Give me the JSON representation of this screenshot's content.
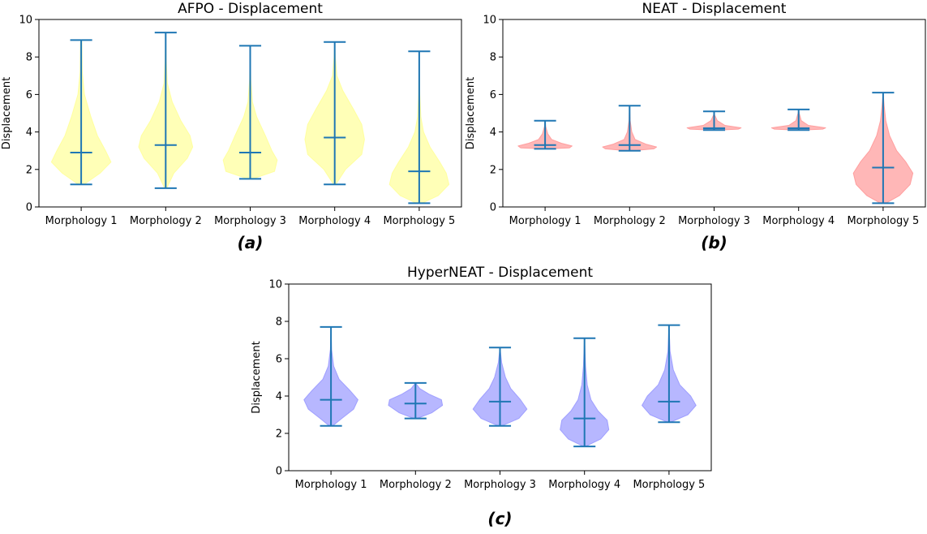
{
  "chart_data": [
    {
      "id": "afpo",
      "type": "violin",
      "title": "AFPO - Displacement",
      "xlabel": "",
      "ylabel": "Displacement",
      "ylim": [
        0,
        10
      ],
      "yticks": [
        0,
        2,
        4,
        6,
        8,
        10
      ],
      "categories": [
        "Morphology 1",
        "Morphology 2",
        "Morphology 3",
        "Morphology 4",
        "Morphology 5"
      ],
      "panel_label": "(a)",
      "fill_color": "#ffff99",
      "edge_color": "#1f77b4",
      "series": [
        {
          "min": 1.2,
          "max": 8.9,
          "median": 2.9,
          "profile": [
            [
              1.2,
              0.05
            ],
            [
              1.8,
              0.35
            ],
            [
              2.4,
              0.55
            ],
            [
              3.0,
              0.45
            ],
            [
              3.8,
              0.3
            ],
            [
              4.8,
              0.18
            ],
            [
              6.0,
              0.06
            ],
            [
              7.2,
              0.02
            ],
            [
              8.9,
              0.01
            ]
          ]
        },
        {
          "min": 1.0,
          "max": 9.3,
          "median": 3.3,
          "profile": [
            [
              1.0,
              0.02
            ],
            [
              1.8,
              0.15
            ],
            [
              2.6,
              0.4
            ],
            [
              3.2,
              0.5
            ],
            [
              3.8,
              0.45
            ],
            [
              4.6,
              0.28
            ],
            [
              5.6,
              0.12
            ],
            [
              6.6,
              0.03
            ],
            [
              7.8,
              0.01
            ],
            [
              9.3,
              0.0
            ]
          ]
        },
        {
          "min": 1.5,
          "max": 8.6,
          "median": 2.9,
          "profile": [
            [
              1.5,
              0.05
            ],
            [
              1.9,
              0.45
            ],
            [
              2.5,
              0.5
            ],
            [
              3.0,
              0.4
            ],
            [
              3.8,
              0.28
            ],
            [
              4.8,
              0.12
            ],
            [
              5.6,
              0.04
            ],
            [
              6.8,
              0.01
            ],
            [
              8.6,
              0.0
            ]
          ]
        },
        {
          "min": 1.2,
          "max": 8.8,
          "median": 3.7,
          "profile": [
            [
              1.2,
              0.02
            ],
            [
              2.0,
              0.2
            ],
            [
              2.8,
              0.5
            ],
            [
              3.6,
              0.55
            ],
            [
              4.4,
              0.5
            ],
            [
              5.2,
              0.35
            ],
            [
              6.2,
              0.15
            ],
            [
              7.0,
              0.04
            ],
            [
              8.0,
              0.01
            ],
            [
              8.8,
              0.0
            ]
          ]
        },
        {
          "min": 0.2,
          "max": 8.3,
          "median": 1.9,
          "profile": [
            [
              0.2,
              0.05
            ],
            [
              0.6,
              0.35
            ],
            [
              1.2,
              0.55
            ],
            [
              1.8,
              0.5
            ],
            [
              2.4,
              0.38
            ],
            [
              3.2,
              0.2
            ],
            [
              4.0,
              0.08
            ],
            [
              4.8,
              0.03
            ],
            [
              6.0,
              0.01
            ],
            [
              8.3,
              0.0
            ]
          ]
        }
      ]
    },
    {
      "id": "neat",
      "type": "violin",
      "title": "NEAT - Displacement",
      "xlabel": "",
      "ylabel": "Displacement",
      "ylim": [
        0,
        10
      ],
      "yticks": [
        0,
        2,
        4,
        6,
        8,
        10
      ],
      "categories": [
        "Morphology 1",
        "Morphology 2",
        "Morphology 3",
        "Morphology 4",
        "Morphology 5"
      ],
      "panel_label": "(b)",
      "fill_color": "#ff9999",
      "edge_color": "#1f77b4",
      "series": [
        {
          "min": 3.1,
          "max": 4.6,
          "median": 3.3,
          "profile": [
            [
              3.1,
              0.05
            ],
            [
              3.15,
              0.45
            ],
            [
              3.25,
              0.5
            ],
            [
              3.4,
              0.3
            ],
            [
              3.6,
              0.12
            ],
            [
              3.9,
              0.05
            ],
            [
              4.3,
              0.01
            ],
            [
              4.6,
              0.0
            ]
          ]
        },
        {
          "min": 3.0,
          "max": 5.4,
          "median": 3.3,
          "profile": [
            [
              3.0,
              0.05
            ],
            [
              3.1,
              0.45
            ],
            [
              3.2,
              0.5
            ],
            [
              3.35,
              0.3
            ],
            [
              3.6,
              0.1
            ],
            [
              4.0,
              0.04
            ],
            [
              4.6,
              0.01
            ],
            [
              5.4,
              0.0
            ]
          ]
        },
        {
          "min": 4.1,
          "max": 5.1,
          "median": 4.2,
          "profile": [
            [
              4.1,
              0.05
            ],
            [
              4.15,
              0.45
            ],
            [
              4.22,
              0.5
            ],
            [
              4.35,
              0.2
            ],
            [
              4.6,
              0.06
            ],
            [
              4.9,
              0.01
            ],
            [
              5.1,
              0.0
            ]
          ]
        },
        {
          "min": 4.1,
          "max": 5.2,
          "median": 4.2,
          "profile": [
            [
              4.1,
              0.05
            ],
            [
              4.15,
              0.45
            ],
            [
              4.22,
              0.5
            ],
            [
              4.35,
              0.18
            ],
            [
              4.6,
              0.05
            ],
            [
              5.0,
              0.01
            ],
            [
              5.2,
              0.0
            ]
          ]
        },
        {
          "min": 0.2,
          "max": 6.1,
          "median": 2.1,
          "profile": [
            [
              0.2,
              0.05
            ],
            [
              0.6,
              0.3
            ],
            [
              1.2,
              0.5
            ],
            [
              1.8,
              0.55
            ],
            [
              2.4,
              0.42
            ],
            [
              3.0,
              0.25
            ],
            [
              3.8,
              0.12
            ],
            [
              4.6,
              0.05
            ],
            [
              5.4,
              0.02
            ],
            [
              6.1,
              0.0
            ]
          ]
        }
      ]
    },
    {
      "id": "hyperneat",
      "type": "violin",
      "title": "HyperNEAT - Displacement",
      "xlabel": "",
      "ylabel": "Displacement",
      "ylim": [
        0,
        10
      ],
      "yticks": [
        0,
        2,
        4,
        6,
        8,
        10
      ],
      "categories": [
        "Morphology 1",
        "Morphology 2",
        "Morphology 3",
        "Morphology 4",
        "Morphology 5"
      ],
      "panel_label": "(c)",
      "fill_color": "#9999ff",
      "edge_color": "#1f77b4",
      "series": [
        {
          "min": 2.4,
          "max": 7.7,
          "median": 3.8,
          "profile": [
            [
              2.4,
              0.03
            ],
            [
              2.8,
              0.2
            ],
            [
              3.3,
              0.42
            ],
            [
              3.8,
              0.5
            ],
            [
              4.3,
              0.35
            ],
            [
              4.9,
              0.15
            ],
            [
              5.6,
              0.05
            ],
            [
              6.5,
              0.01
            ],
            [
              7.7,
              0.0
            ]
          ]
        },
        {
          "min": 2.8,
          "max": 4.7,
          "median": 3.6,
          "profile": [
            [
              2.8,
              0.03
            ],
            [
              3.1,
              0.3
            ],
            [
              3.5,
              0.5
            ],
            [
              3.8,
              0.48
            ],
            [
              4.1,
              0.25
            ],
            [
              4.4,
              0.08
            ],
            [
              4.7,
              0.0
            ]
          ]
        },
        {
          "min": 2.4,
          "max": 6.6,
          "median": 3.7,
          "profile": [
            [
              2.4,
              0.03
            ],
            [
              2.8,
              0.35
            ],
            [
              3.3,
              0.5
            ],
            [
              3.8,
              0.38
            ],
            [
              4.4,
              0.2
            ],
            [
              5.0,
              0.1
            ],
            [
              5.8,
              0.03
            ],
            [
              6.6,
              0.0
            ]
          ]
        },
        {
          "min": 1.3,
          "max": 7.1,
          "median": 2.8,
          "profile": [
            [
              1.3,
              0.02
            ],
            [
              1.7,
              0.3
            ],
            [
              2.2,
              0.45
            ],
            [
              2.7,
              0.42
            ],
            [
              3.2,
              0.25
            ],
            [
              3.8,
              0.12
            ],
            [
              4.6,
              0.05
            ],
            [
              5.6,
              0.02
            ],
            [
              7.1,
              0.0
            ]
          ]
        },
        {
          "min": 2.6,
          "max": 7.8,
          "median": 3.7,
          "profile": [
            [
              2.6,
              0.03
            ],
            [
              3.0,
              0.35
            ],
            [
              3.5,
              0.5
            ],
            [
              4.0,
              0.4
            ],
            [
              4.6,
              0.2
            ],
            [
              5.4,
              0.08
            ],
            [
              6.4,
              0.02
            ],
            [
              7.8,
              0.0
            ]
          ]
        }
      ]
    }
  ]
}
